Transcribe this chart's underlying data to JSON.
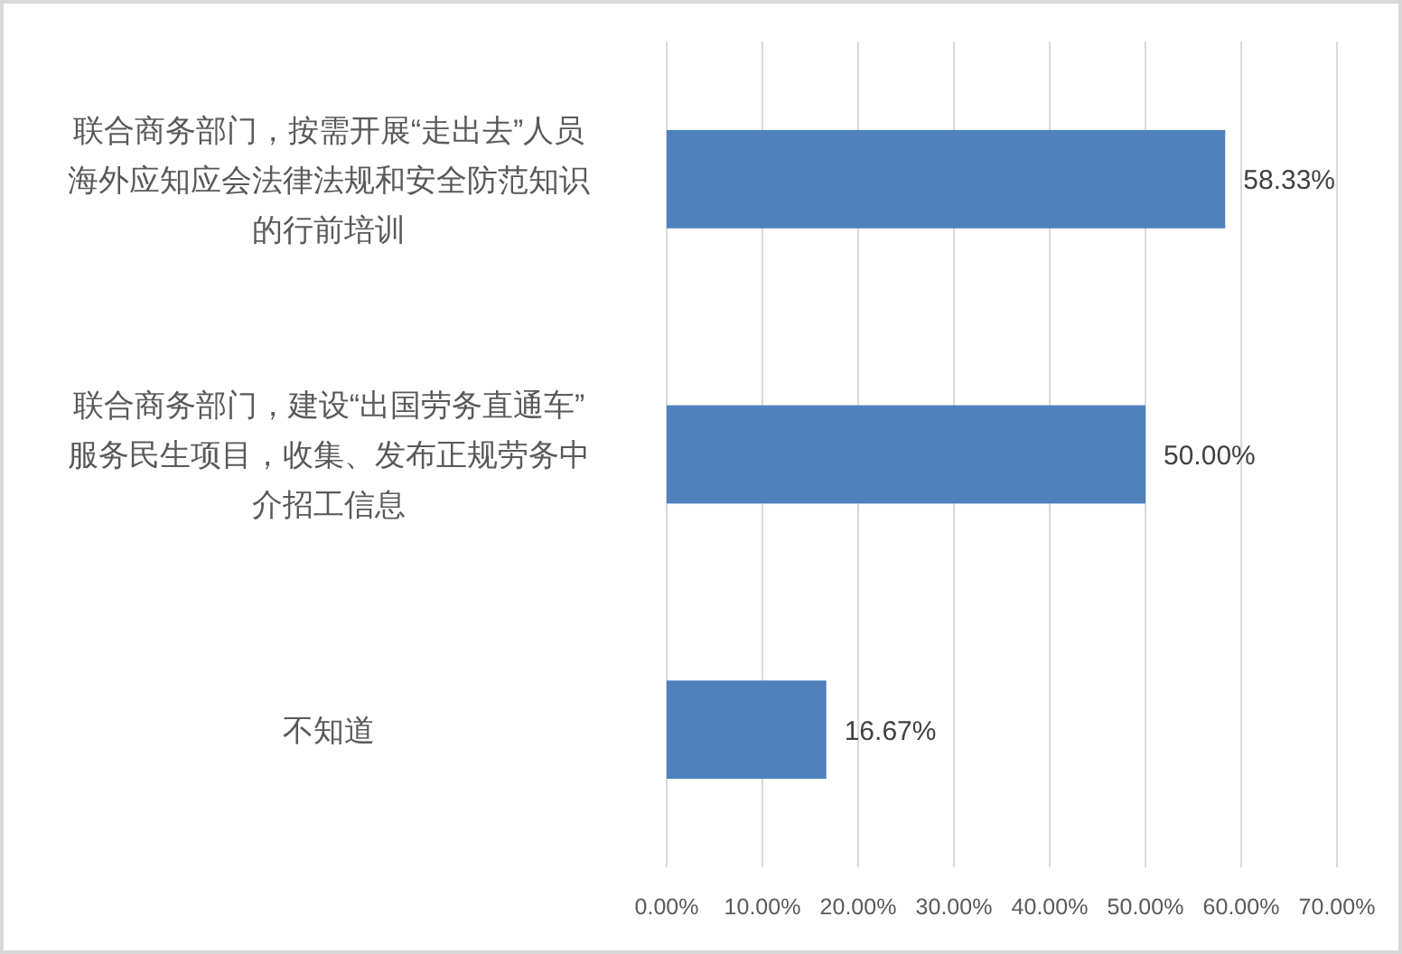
{
  "chart_data": {
    "type": "bar",
    "orientation": "horizontal",
    "categories": [
      "联合商务部门，按需开展“走出去”人员海外应知应会法律法规和安全防范知识的行前培训",
      "联合商务部门，建设“出国劳务直通车”服务民生项目，收集、发布正规劳务中介招工信息",
      "不知道"
    ],
    "values": [
      58.33,
      50,
      16.67
    ],
    "color": "#4f81bd",
    "value_labels": [
      "58.33%",
      "50.00%",
      "16.67%"
    ],
    "xlim": [
      0,
      70
    ],
    "xticks": [
      {
        "value": 0,
        "label": "0.00%"
      },
      {
        "value": 10,
        "label": "10.00%"
      },
      {
        "value": 20,
        "label": "20.00%"
      },
      {
        "value": 30,
        "label": "30.00%"
      },
      {
        "value": 40,
        "label": "40.00%"
      },
      {
        "value": 50,
        "label": "50.00%"
      },
      {
        "value": 60,
        "label": "60.00%"
      },
      {
        "value": 70,
        "label": "70.00%"
      }
    ],
    "grid": "x"
  }
}
